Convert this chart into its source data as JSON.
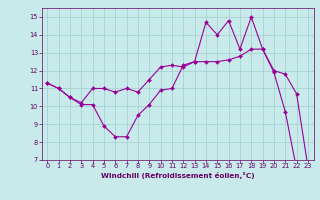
{
  "line1_x": [
    0,
    1,
    2,
    3,
    4,
    5,
    6,
    7,
    8,
    9,
    10,
    11,
    12,
    13,
    14,
    15,
    16,
    17,
    18,
    19,
    20,
    21,
    22,
    23
  ],
  "line1_y": [
    11.3,
    11.0,
    10.5,
    10.1,
    10.1,
    8.9,
    8.3,
    8.3,
    9.5,
    10.1,
    10.9,
    11.0,
    12.3,
    12.5,
    14.7,
    14.0,
    14.8,
    13.2,
    15.0,
    13.2,
    11.9,
    9.7,
    6.5,
    6.6
  ],
  "line2_x": [
    0,
    1,
    2,
    3,
    4,
    5,
    6,
    7,
    8,
    9,
    10,
    11,
    12,
    13,
    14,
    15,
    16,
    17,
    18,
    19,
    20,
    21,
    22,
    23
  ],
  "line2_y": [
    11.3,
    11.0,
    10.5,
    10.2,
    11.0,
    11.0,
    10.8,
    11.0,
    10.8,
    11.5,
    12.2,
    12.3,
    12.2,
    12.5,
    12.5,
    12.5,
    12.6,
    12.8,
    13.2,
    13.2,
    12.0,
    11.8,
    10.7,
    6.6
  ],
  "line_color": "#990099",
  "bg_color": "#c8eaea",
  "grid_color": "#9ecece",
  "xlabel": "Windchill (Refroidissement éolien,°C)",
  "xlim": [
    -0.5,
    23.5
  ],
  "ylim": [
    7,
    15.5
  ],
  "xticks": [
    0,
    1,
    2,
    3,
    4,
    5,
    6,
    7,
    8,
    9,
    10,
    11,
    12,
    13,
    14,
    15,
    16,
    17,
    18,
    19,
    20,
    21,
    22,
    23
  ],
  "yticks": [
    7,
    8,
    9,
    10,
    11,
    12,
    13,
    14,
    15
  ],
  "label_color": "#660066",
  "tick_color": "#660066",
  "font_size": 4.8,
  "xlabel_size": 5.2,
  "marker": "D",
  "marker_size": 2.0,
  "linewidth": 0.8
}
